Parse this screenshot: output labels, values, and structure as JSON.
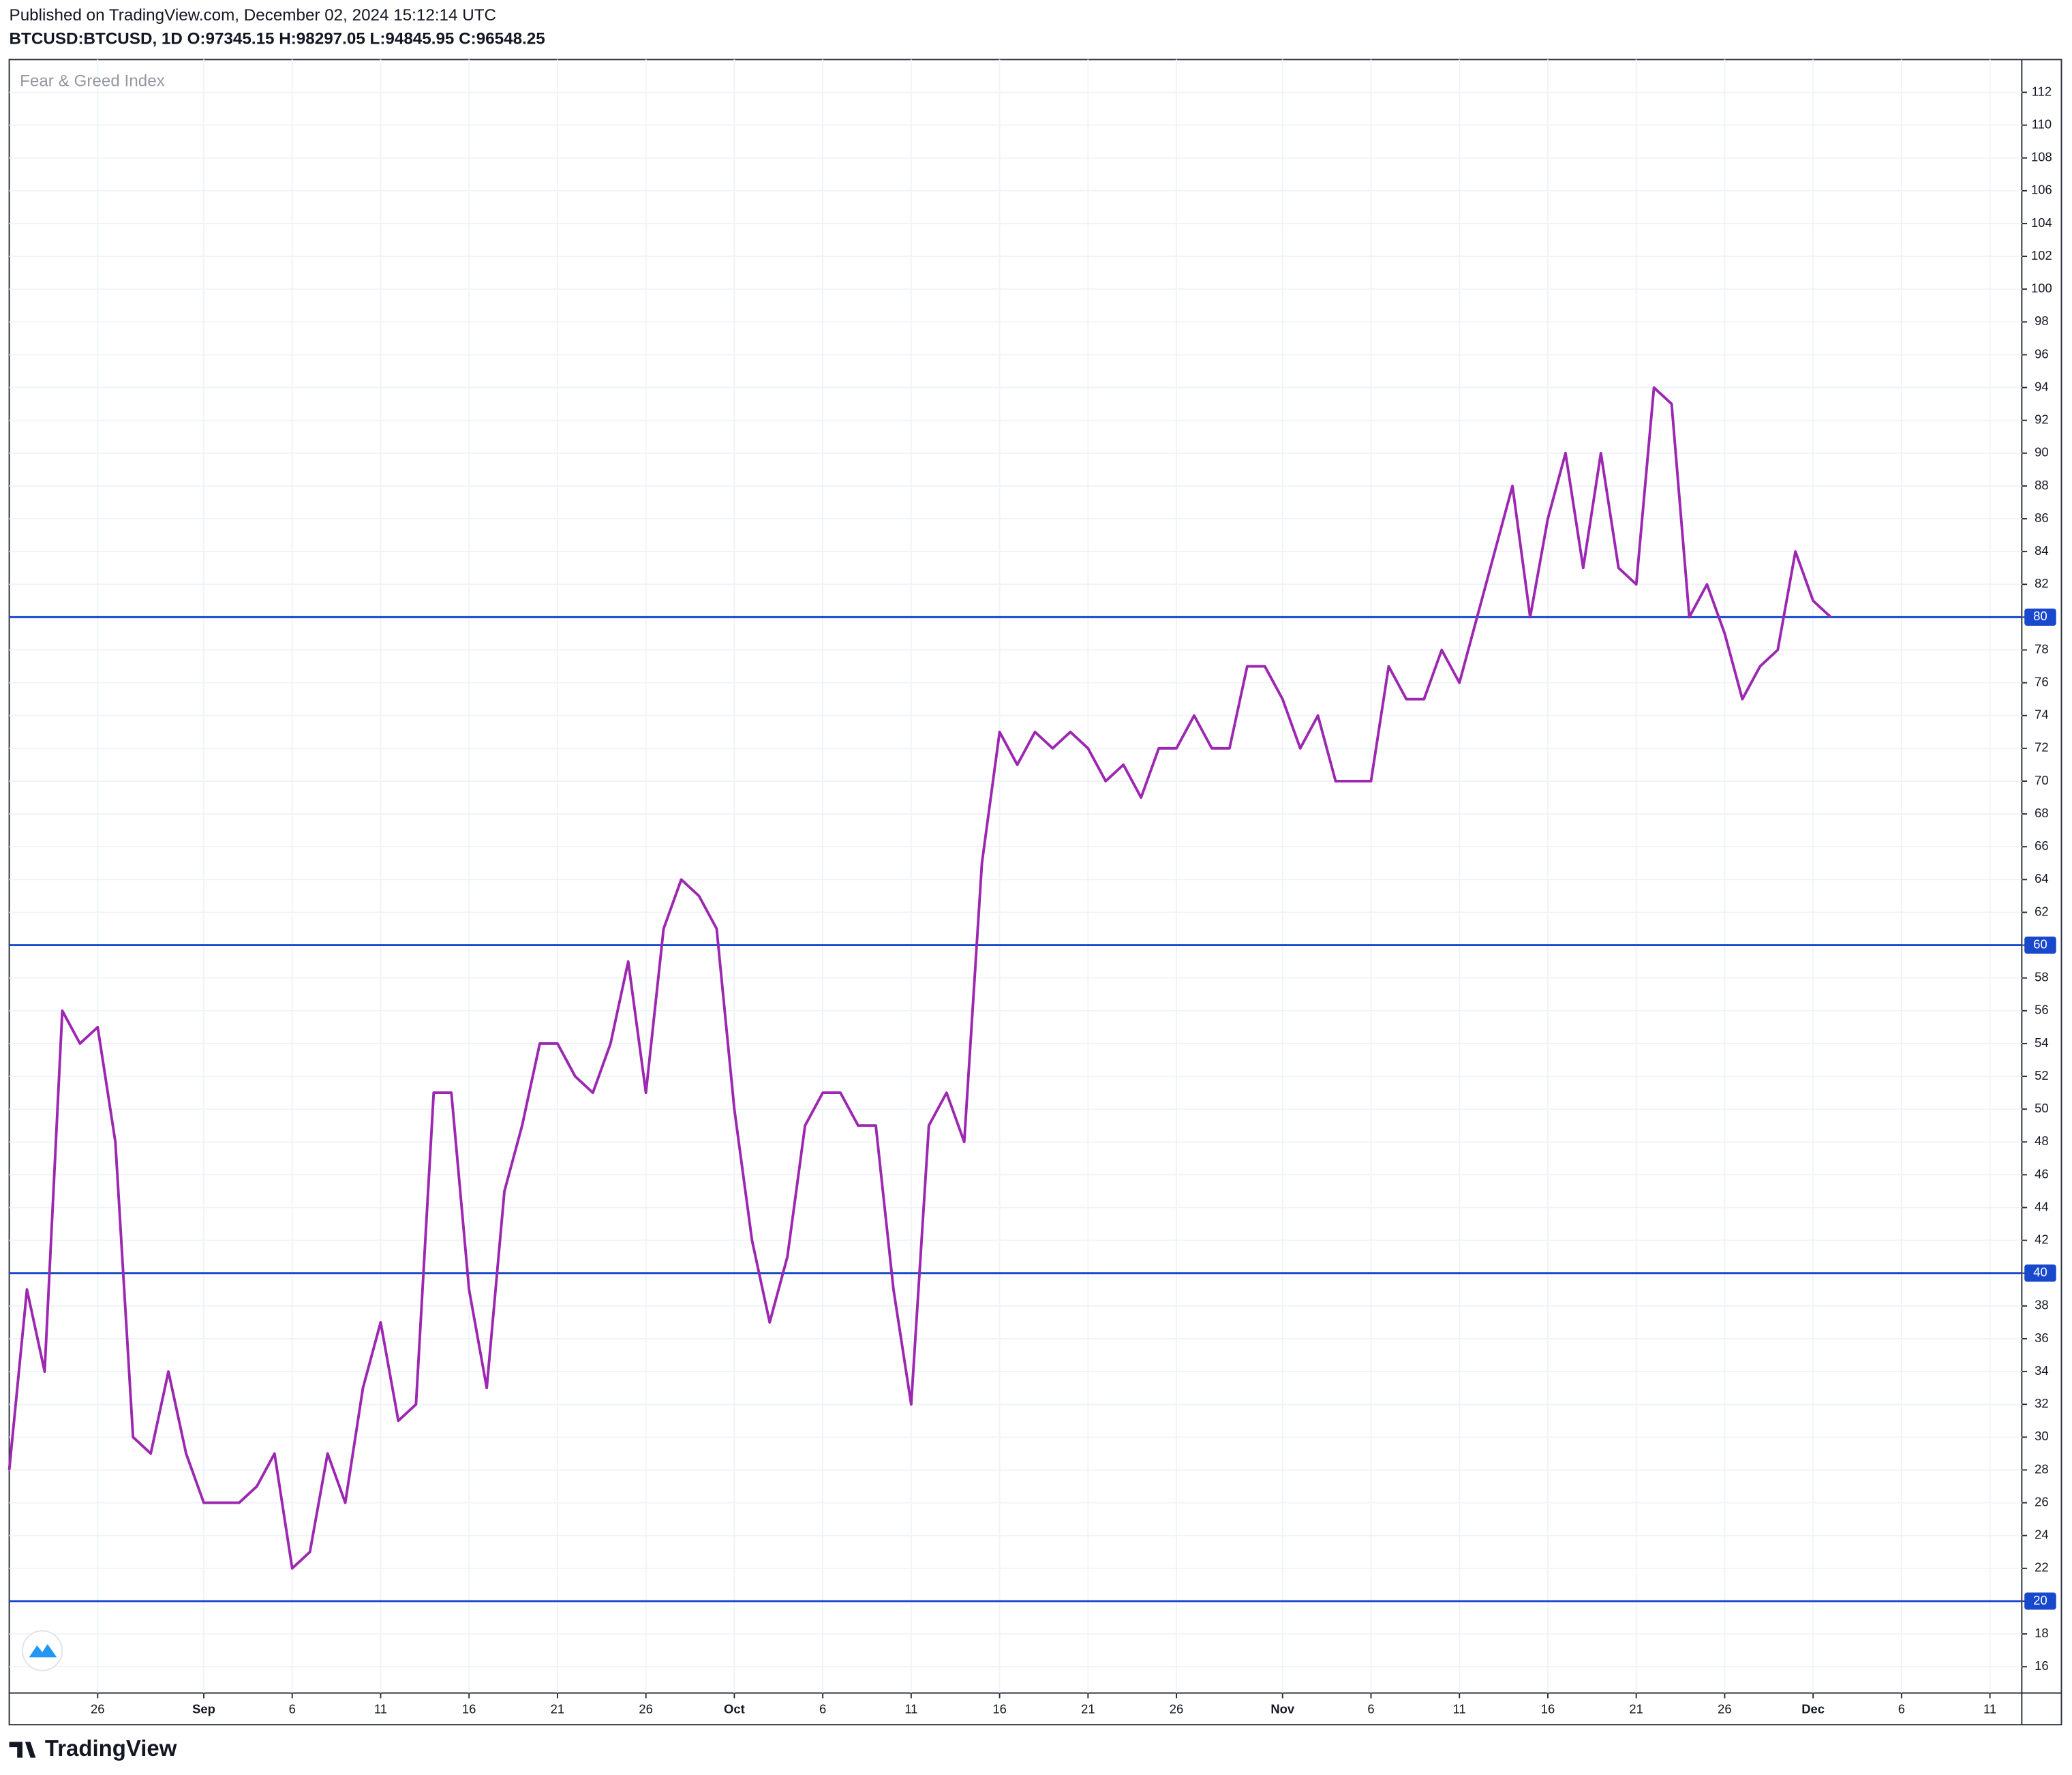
{
  "header": {
    "published": "Published on TradingView.com, December 02, 2024 15:12:14 UTC",
    "ticker": "BTCUSD:BTCUSD, 1D O:97345.15 H:98297.05 L:94845.95 C:96548.25"
  },
  "footer": {
    "brand": "TradingView"
  },
  "chart_data": {
    "type": "line",
    "title": "Fear & Greed Index",
    "color": "#9c27b0",
    "grid": true,
    "values": [
      28,
      39,
      34,
      56,
      54,
      55,
      48,
      30,
      29,
      34,
      29,
      26,
      26,
      26,
      27,
      29,
      22,
      23,
      29,
      26,
      33,
      37,
      31,
      32,
      51,
      51,
      39,
      33,
      45,
      49,
      54,
      54,
      52,
      51,
      54,
      59,
      51,
      61,
      64,
      63,
      61,
      50,
      42,
      37,
      41,
      49,
      51,
      51,
      49,
      49,
      39,
      32,
      49,
      51,
      48,
      65,
      73,
      71,
      73,
      72,
      73,
      72,
      70,
      71,
      69,
      72,
      72,
      74,
      72,
      72,
      77,
      77,
      75,
      72,
      74,
      70,
      70,
      70,
      77,
      75,
      75,
      78,
      76,
      80,
      84,
      88,
      80,
      86,
      90,
      83,
      90,
      83,
      82,
      94,
      93,
      80,
      82,
      79,
      75,
      77,
      78,
      84,
      81,
      80
    ],
    "xlim": [
      0,
      113.8
    ],
    "xticks": [
      {
        "value": 5,
        "label": "26"
      },
      {
        "value": 11,
        "label": "Sep"
      },
      {
        "value": 16,
        "label": "6"
      },
      {
        "value": 21,
        "label": "11"
      },
      {
        "value": 26,
        "label": "16"
      },
      {
        "value": 31,
        "label": "21"
      },
      {
        "value": 36,
        "label": "26"
      },
      {
        "value": 41,
        "label": "Oct"
      },
      {
        "value": 46,
        "label": "6"
      },
      {
        "value": 51,
        "label": "11"
      },
      {
        "value": 56,
        "label": "16"
      },
      {
        "value": 61,
        "label": "21"
      },
      {
        "value": 66,
        "label": "26"
      },
      {
        "value": 72,
        "label": "Nov"
      },
      {
        "value": 77,
        "label": "6"
      },
      {
        "value": 82,
        "label": "11"
      },
      {
        "value": 87,
        "label": "16"
      },
      {
        "value": 92,
        "label": "21"
      },
      {
        "value": 97,
        "label": "26"
      },
      {
        "value": 102,
        "label": "Dec"
      },
      {
        "value": 107,
        "label": "6"
      },
      {
        "value": 112,
        "label": "11"
      }
    ],
    "ylim": [
      14.4,
      114
    ],
    "yticks": [
      16,
      18,
      20,
      22,
      24,
      26,
      28,
      30,
      32,
      34,
      36,
      38,
      40,
      42,
      44,
      46,
      48,
      50,
      52,
      54,
      56,
      58,
      60,
      62,
      64,
      66,
      68,
      70,
      72,
      74,
      76,
      78,
      80,
      82,
      84,
      86,
      88,
      90,
      92,
      94,
      96,
      98,
      100,
      102,
      104,
      106,
      108,
      110,
      112
    ],
    "hlines": {
      "color": "#1848cc",
      "values": [
        20,
        40,
        60,
        80
      ]
    }
  }
}
